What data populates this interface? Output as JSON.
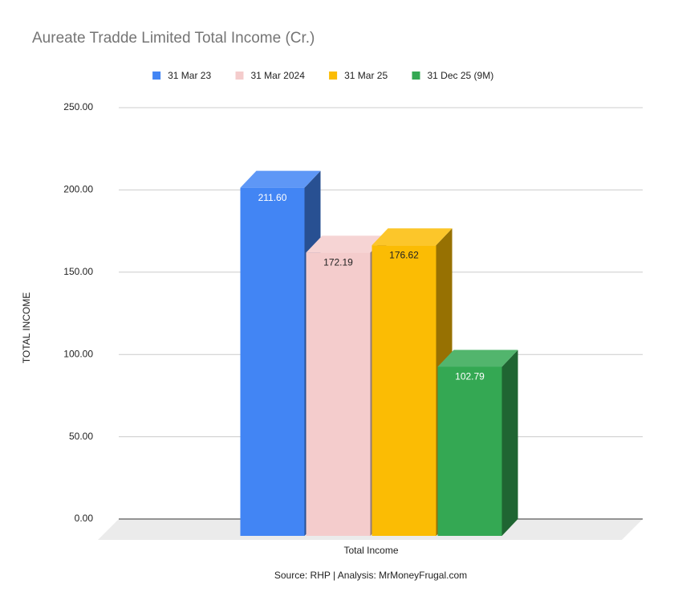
{
  "chart_data": {
    "type": "bar3d",
    "title": "Aureate Tradde Limited Total Income (Cr.)",
    "y_label": "TOTAL INCOME",
    "source": "Source: RHP | Analysis: MrMoneyFrugal.com",
    "categories": [
      "Total Income"
    ],
    "series": [
      {
        "name": "31 Mar 23",
        "color": "#4285f4",
        "values": [
          211.6
        ],
        "value_labels": [
          "211.60"
        ]
      },
      {
        "name": "31 Mar 2024",
        "color": "#f4cccc",
        "values": [
          172.19
        ],
        "value_labels": [
          "172.19"
        ]
      },
      {
        "name": "31 Mar 25",
        "color": "#fbbc04",
        "values": [
          176.62
        ],
        "value_labels": [
          "176.62"
        ]
      },
      {
        "name": "31 Dec 25 (9M)",
        "color": "#34a853",
        "values": [
          102.79
        ],
        "value_labels": [
          "102.79"
        ]
      }
    ],
    "ylim": [
      0,
      250
    ],
    "yticks": [
      {
        "value": 0,
        "label": "0.00"
      },
      {
        "value": 50,
        "label": "50.00"
      },
      {
        "value": 100,
        "label": "100.00"
      },
      {
        "value": 150,
        "label": "150.00"
      },
      {
        "value": 200,
        "label": "200.00"
      },
      {
        "value": 250,
        "label": "250.00"
      }
    ],
    "grid": true
  }
}
